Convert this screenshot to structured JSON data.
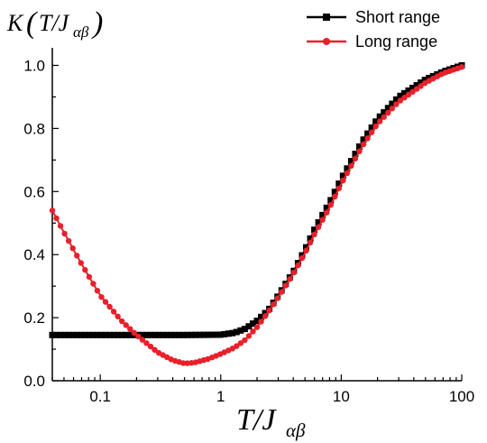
{
  "chart_data": {
    "type": "line",
    "title": "",
    "ylabel": "K(T/Jαβ)",
    "xlabel": "T/Jαβ",
    "xscale": "log",
    "xlim": [
      0.04,
      100
    ],
    "ylim": [
      0.0,
      1.05
    ],
    "xticks": [
      0.1,
      1,
      10,
      100
    ],
    "xtick_labels": [
      "0.1",
      "1",
      "10",
      "100"
    ],
    "yticks": [
      0.0,
      0.2,
      0.4,
      0.6,
      0.8,
      1.0
    ],
    "ytick_labels": [
      "0.0",
      "0.2",
      "0.4",
      "0.6",
      "0.8",
      "1.0"
    ],
    "legend_position": "top-right",
    "grid": false,
    "series": [
      {
        "name": "Short range",
        "color": "#000000",
        "marker": "square",
        "x": [
          0.04,
          0.06,
          0.1,
          0.2,
          0.5,
          1.0,
          1.3,
          1.6,
          2.0,
          2.5,
          3.0,
          4.0,
          5.0,
          6.0,
          8.0,
          10,
          15,
          20,
          30,
          50,
          70,
          100
        ],
        "y": [
          0.145,
          0.145,
          0.145,
          0.145,
          0.145,
          0.146,
          0.152,
          0.165,
          0.19,
          0.225,
          0.27,
          0.345,
          0.415,
          0.48,
          0.565,
          0.64,
          0.76,
          0.83,
          0.9,
          0.955,
          0.98,
          1.0
        ]
      },
      {
        "name": "Long range",
        "color": "#e8202a",
        "marker": "circle",
        "x": [
          0.04,
          0.05,
          0.07,
          0.1,
          0.15,
          0.2,
          0.3,
          0.4,
          0.5,
          0.6,
          0.8,
          1.0,
          1.3,
          1.6,
          2.0,
          2.5,
          3.0,
          4.0,
          5.0,
          6.0,
          8.0,
          10,
          15,
          20,
          30,
          50,
          70,
          100
        ],
        "y": [
          0.54,
          0.47,
          0.37,
          0.27,
          0.19,
          0.145,
          0.09,
          0.065,
          0.055,
          0.057,
          0.07,
          0.085,
          0.105,
          0.13,
          0.17,
          0.22,
          0.265,
          0.34,
          0.405,
          0.465,
          0.55,
          0.625,
          0.745,
          0.815,
          0.885,
          0.945,
          0.975,
          0.995
        ]
      }
    ]
  }
}
